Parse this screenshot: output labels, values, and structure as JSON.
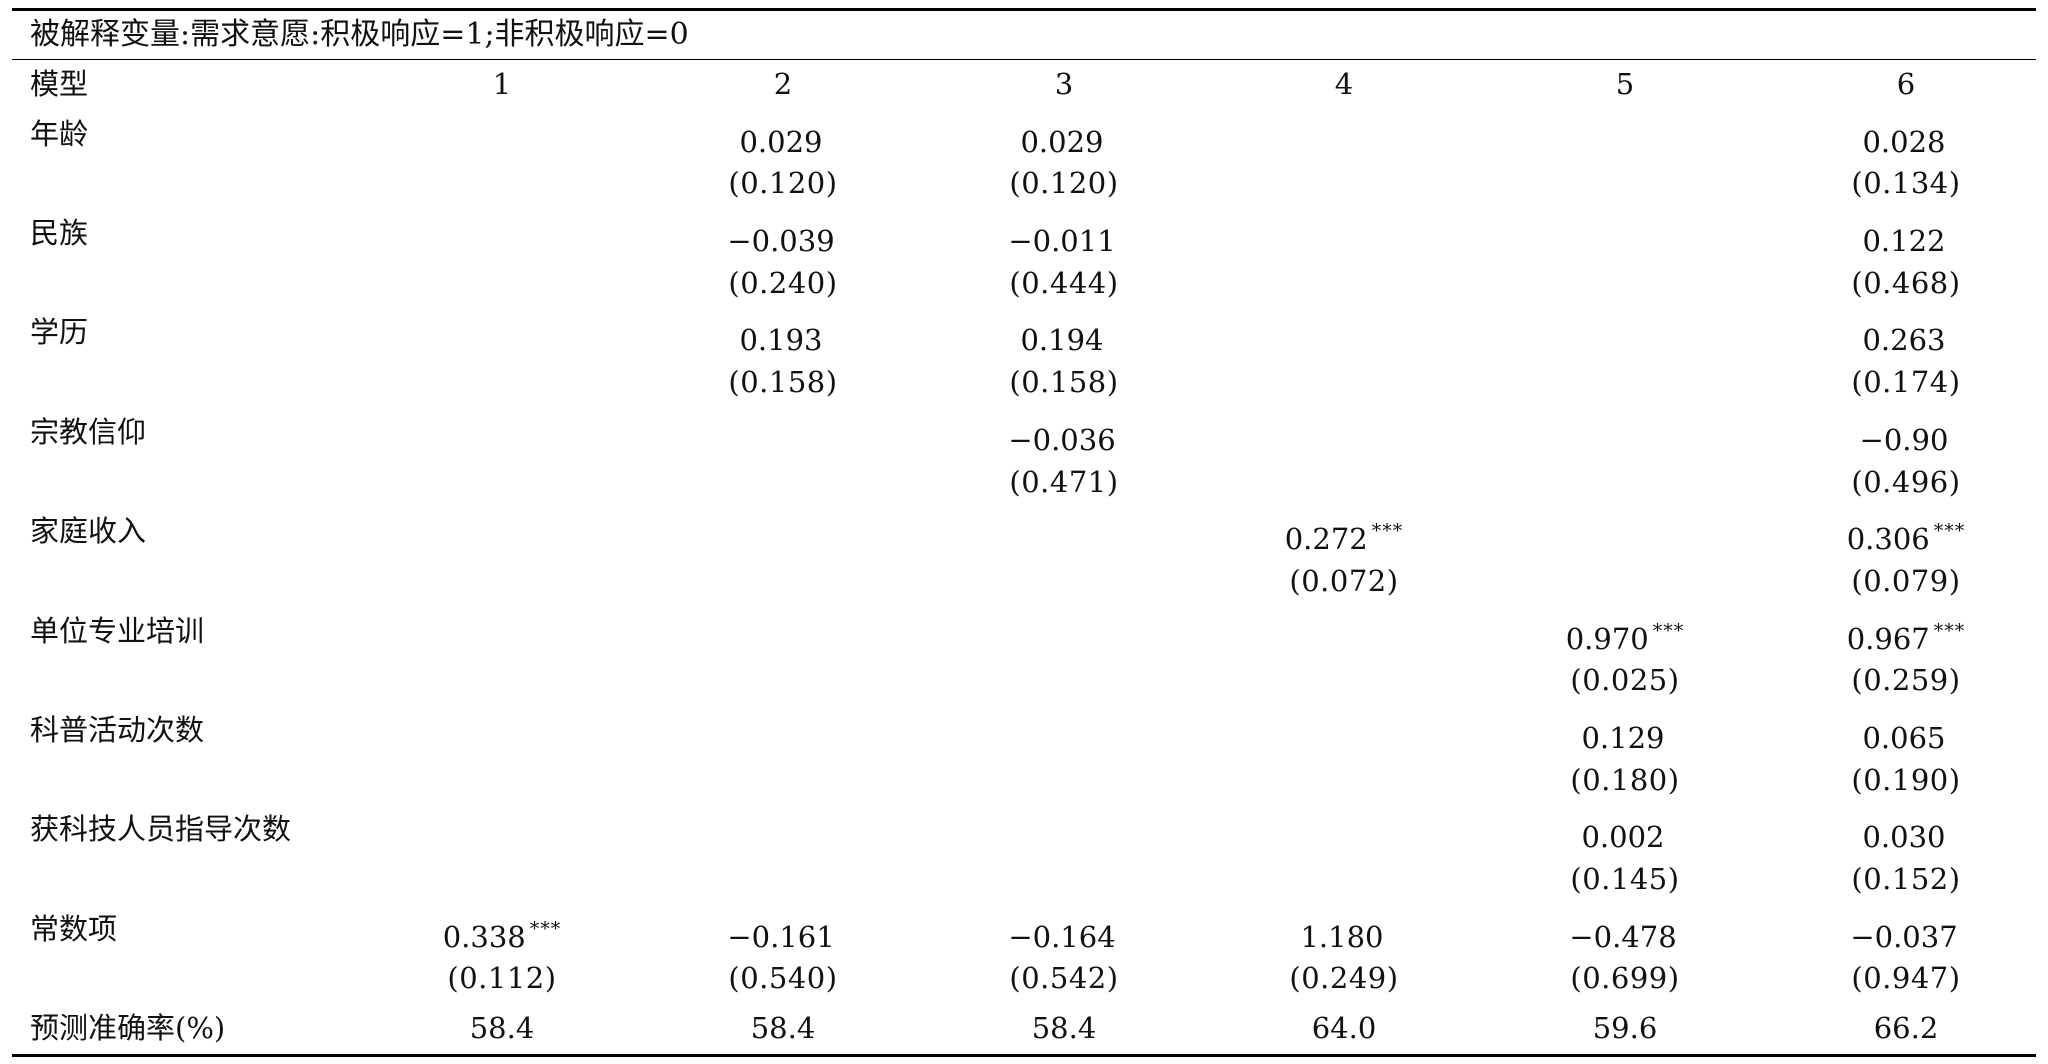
{
  "caption": "被解释变量:需求意愿:积极响应=1;非积极响应=0",
  "header": {
    "label": "模型",
    "models": [
      "1",
      "2",
      "3",
      "4",
      "5",
      "6"
    ]
  },
  "rows": [
    {
      "label": "年龄",
      "coef": [
        "",
        "0.029",
        "0.029",
        "",
        "",
        "0.028"
      ],
      "sig": [
        "",
        "",
        "",
        "",
        "",
        ""
      ],
      "se": [
        "",
        "(0.120)",
        "(0.120)",
        "",
        "",
        "(0.134)"
      ]
    },
    {
      "label": "民族",
      "coef": [
        "",
        "−0.039",
        "−0.011",
        "",
        "",
        "0.122"
      ],
      "sig": [
        "",
        "",
        "",
        "",
        "",
        ""
      ],
      "se": [
        "",
        "(0.240)",
        "(0.444)",
        "",
        "",
        "(0.468)"
      ]
    },
    {
      "label": "学历",
      "coef": [
        "",
        "0.193",
        "0.194",
        "",
        "",
        "0.263"
      ],
      "sig": [
        "",
        "",
        "",
        "",
        "",
        ""
      ],
      "se": [
        "",
        "(0.158)",
        "(0.158)",
        "",
        "",
        "(0.174)"
      ]
    },
    {
      "label": "宗教信仰",
      "coef": [
        "",
        "",
        "−0.036",
        "",
        "",
        "−0.90"
      ],
      "sig": [
        "",
        "",
        "",
        "",
        "",
        ""
      ],
      "se": [
        "",
        "",
        "(0.471)",
        "",
        "",
        "(0.496)"
      ]
    },
    {
      "label": "家庭收入",
      "coef": [
        "",
        "",
        "",
        "0.272",
        "",
        "0.306"
      ],
      "sig": [
        "",
        "",
        "",
        "***",
        "",
        "***"
      ],
      "se": [
        "",
        "",
        "",
        "(0.072)",
        "",
        "(0.079)"
      ]
    },
    {
      "label": "单位专业培训",
      "coef": [
        "",
        "",
        "",
        "",
        "0.970",
        "0.967"
      ],
      "sig": [
        "",
        "",
        "",
        "",
        "***",
        "***"
      ],
      "se": [
        "",
        "",
        "",
        "",
        "(0.025)",
        "(0.259)"
      ]
    },
    {
      "label": "科普活动次数",
      "coef": [
        "",
        "",
        "",
        "",
        "0.129",
        "0.065"
      ],
      "sig": [
        "",
        "",
        "",
        "",
        "",
        ""
      ],
      "se": [
        "",
        "",
        "",
        "",
        "(0.180)",
        "(0.190)"
      ]
    },
    {
      "label": "获科技人员指导次数",
      "coef": [
        "",
        "",
        "",
        "",
        "0.002",
        "0.030"
      ],
      "sig": [
        "",
        "",
        "",
        "",
        "",
        ""
      ],
      "se": [
        "",
        "",
        "",
        "",
        "(0.145)",
        "(0.152)"
      ]
    },
    {
      "label": "常数项",
      "coef": [
        "0.338",
        "−0.161",
        "−0.164",
        "1.180",
        "−0.478",
        "−0.037"
      ],
      "sig": [
        "***",
        "",
        "",
        "",
        "",
        ""
      ],
      "se": [
        "(0.112)",
        "(0.540)",
        "(0.542)",
        "(0.249)",
        "(0.699)",
        "(0.947)"
      ]
    }
  ],
  "footer": {
    "label": "预测准确率(%)",
    "values": [
      "58.4",
      "58.4",
      "58.4",
      "64.0",
      "59.6",
      "66.2"
    ]
  }
}
